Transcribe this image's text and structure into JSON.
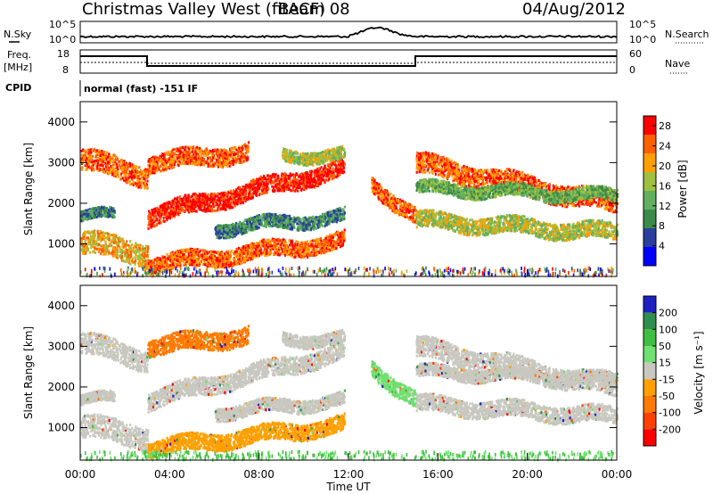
{
  "header": {
    "station": "Christmas Valley West (fitACF)",
    "beam": "Beam 08",
    "date": "04/Aug/2012",
    "mode": "normal (fast) -151 IF"
  },
  "summary_panels": {
    "nsky_label": "N.Sky",
    "nsearch_label": "N.Search",
    "freq_label_1": "Freq.",
    "freq_label_2": "[MHz]",
    "nave_label": "Nave",
    "cpid_label": "CPID",
    "noise_left_top": "10^5",
    "noise_left_bottom": "10^0",
    "noise_right_top": "10^5",
    "noise_right_bottom": "10^0",
    "freq_left_top": "18",
    "freq_left_bottom": "8",
    "nave_right_top": "60",
    "nave_right_bottom": "0"
  },
  "colors": {
    "power_scale": [
      "#0000ff",
      "#2b3fa0",
      "#3a8a4a",
      "#60b060",
      "#a0c040",
      "#ffa000",
      "#ff6000",
      "#ff0000"
    ],
    "velocity_scale": [
      "#2020c0",
      "#2f8f4f",
      "#3fbf3f",
      "#70e070",
      "#c8c8c0",
      "#ffa000",
      "#ff7a00",
      "#ff4000",
      "#ff0000"
    ]
  },
  "chart_data": [
    {
      "type": "heatmap",
      "name": "power",
      "ylabel": "Slant Range [km]",
      "yticks": [
        "1000",
        "2000",
        "3000",
        "4000"
      ],
      "ylim": [
        200,
        4500
      ],
      "colorbar_label": "Power [dB]",
      "colorbar_ticks": [
        "28",
        "24",
        "20",
        "16",
        "12",
        "8",
        "4"
      ],
      "colorbar_range": [
        0,
        30
      ]
    },
    {
      "type": "heatmap",
      "name": "velocity",
      "ylabel": "Slant Range [km]",
      "yticks": [
        "1000",
        "2000",
        "3000",
        "4000"
      ],
      "ylim": [
        200,
        4500
      ],
      "colorbar_label": "Velocity [m s⁻¹]",
      "colorbar_ticks": [
        "200",
        "100",
        "50",
        "15",
        "-15",
        "-50",
        "-100",
        "-200"
      ]
    },
    {
      "type": "line",
      "name": "time_axis",
      "xlabel": "Time UT",
      "xticks": [
        "00:00",
        "04:00",
        "08:00",
        "12:00",
        "16:00",
        "20:00",
        "00:00"
      ],
      "xlim": [
        0,
        24
      ]
    }
  ]
}
